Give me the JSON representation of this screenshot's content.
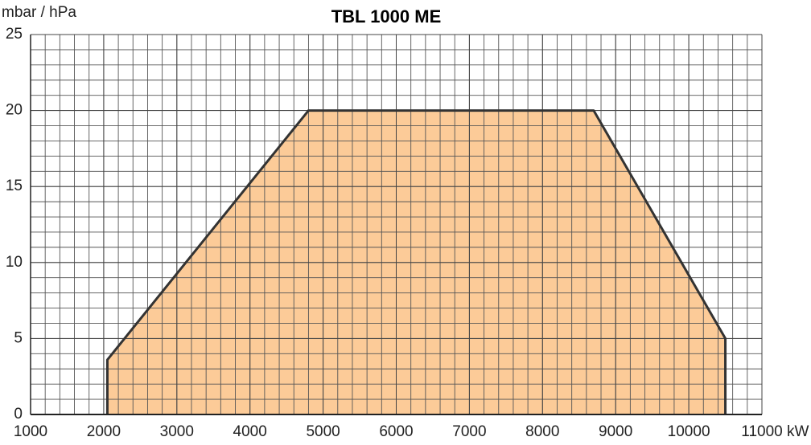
{
  "chart_data": {
    "type": "area",
    "title": "TBL 1000 ME",
    "y_label": "mbar / hPa",
    "x_label": "kW",
    "series": [
      {
        "color": "#fccb98",
        "x": [
          2050,
          2050,
          4800,
          8700,
          10500,
          10500
        ],
        "values": [
          0,
          3.6,
          20,
          20,
          5,
          0
        ]
      }
    ],
    "xlim": [
      1000,
      11000
    ],
    "xticks": [
      1000,
      2000,
      3000,
      4000,
      5000,
      6000,
      7000,
      8000,
      9000,
      10000,
      11000
    ],
    "ylim": [
      0,
      25
    ],
    "yticks": [
      0,
      5,
      10,
      15,
      20,
      25
    ],
    "grid": true,
    "minor_grid": {
      "x": 200,
      "y": 1
    }
  }
}
